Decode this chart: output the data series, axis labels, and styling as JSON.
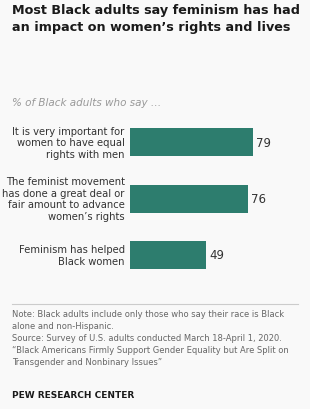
{
  "title": "Most Black adults say feminism has had\nan impact on women’s rights and lives",
  "subtitle": "% of Black adults who say …",
  "categories": [
    "It is very important for\nwomen to have equal\nrights with men",
    "The feminist movement\nhas done a great deal or\nfair amount to advance\nwomen’s rights",
    "Feminism has helped\nBlack women"
  ],
  "values": [
    79,
    76,
    49
  ],
  "bar_color": "#2d7d6e",
  "value_color": "#333333",
  "title_color": "#1a1a1a",
  "subtitle_color": "#999999",
  "note_color": "#666666",
  "note_text": "Note: Black adults include only those who say their race is Black\nalone and non-Hispanic.\nSource: Survey of U.S. adults conducted March 18-April 1, 2020.\n“Black Americans Firmly Support Gender Equality but Are Split on\nTransgender and Nonbinary Issues”",
  "footer": "PEW RESEARCH CENTER",
  "bg_color": "#f9f9f9",
  "xlim": [
    0,
    100
  ]
}
